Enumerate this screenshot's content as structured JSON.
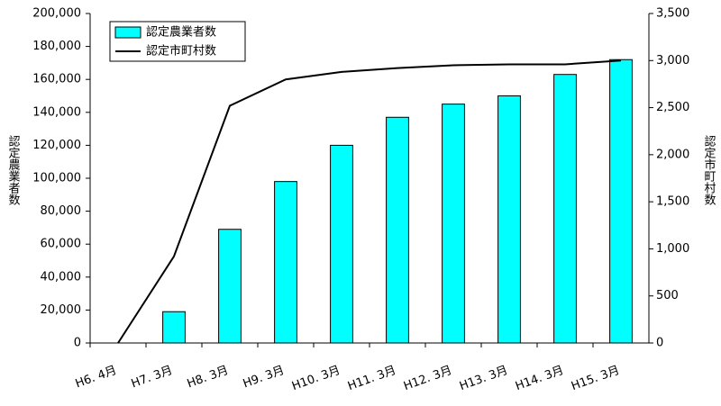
{
  "chart_data": {
    "type": "bar-line",
    "y_label": "認定農業者数",
    "y2_label": "認定市町村数",
    "categories": [
      "H6. 4月",
      "H7. 3月",
      "H8. 3月",
      "H9. 3月",
      "H10. 3月",
      "H11. 3月",
      "H12. 3月",
      "H13. 3月",
      "H14. 3月",
      "H15. 3月"
    ],
    "series": [
      {
        "name": "認定農業者数",
        "type": "bar",
        "color": "#00ffff",
        "values": [
          0,
          19000,
          69000,
          98000,
          120000,
          137000,
          145000,
          150000,
          163000,
          172000
        ]
      },
      {
        "name": "認定市町村数",
        "type": "line",
        "axis": "y2",
        "color": "#000000",
        "values": [
          0,
          920,
          2520,
          2800,
          2880,
          2920,
          2950,
          2960,
          2960,
          3000
        ]
      }
    ],
    "ylim": [
      0,
      200000
    ],
    "yticks": [
      0,
      {
        "value": 20000,
        "label": "20,000"
      },
      {
        "value": 40000,
        "label": "40,000"
      },
      {
        "value": 60000,
        "label": "60,000"
      },
      {
        "value": 80000,
        "label": "80,000"
      },
      {
        "value": 100000,
        "label": "100,000"
      },
      {
        "value": 120000,
        "label": "120,000"
      },
      {
        "value": 140000,
        "label": "140,000"
      },
      {
        "value": 160000,
        "label": "160,000"
      },
      {
        "value": 180000,
        "label": "180,000"
      },
      {
        "value": 200000,
        "label": "200,000"
      }
    ],
    "y2lim": [
      0,
      3500
    ],
    "y2ticks": [
      0,
      500,
      {
        "value": 1000,
        "label": "1,000"
      },
      {
        "value": 1500,
        "label": "1,500"
      },
      {
        "value": 2000,
        "label": "2,000"
      },
      {
        "value": 2500,
        "label": "2,500"
      },
      {
        "value": 3000,
        "label": "3,000"
      },
      {
        "value": 3500,
        "label": "3,500"
      }
    ],
    "grid": false,
    "legend": "top-left"
  }
}
